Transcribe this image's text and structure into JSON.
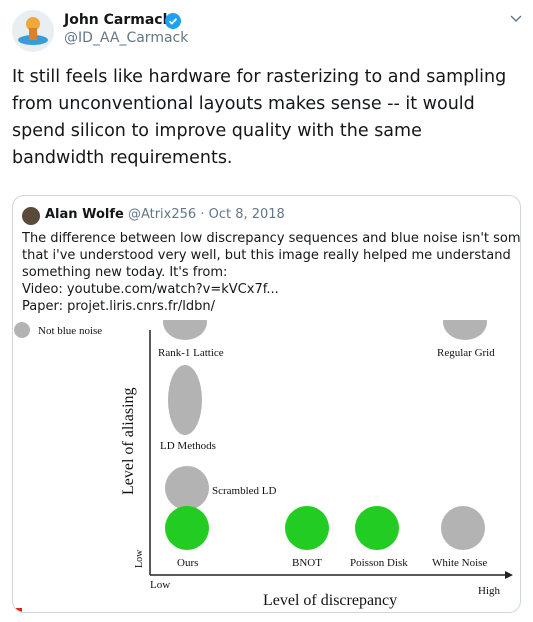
{
  "tweet": {
    "author": {
      "name": "John Carmack",
      "handle": "@ID_AA_Carmack"
    },
    "text_lines": [
      "It still feels like hardware for rasterizing to and sampling",
      "from unconventional layouts makes sense -- it would",
      "spend silicon to improve quality with the same",
      "bandwidth requirements."
    ],
    "quote": {
      "author": {
        "name": "Alan Wolfe",
        "handle": "@Atrix256",
        "date": "· Oct 8, 2018"
      },
      "text_lines": [
        "The difference between low discrepancy sequences and blue noise isn't something",
        "that i've understood very well, but this image really helped me understand",
        "something new today.  It's from:",
        "Video: youtube.com/watch?v=kVCx7f...",
        "Paper: projet.liris.cnrs.fr/ldbn/"
      ],
      "image": {
        "legend": "Not blue noise",
        "y_axis": "Level of aliasing",
        "x_axis": "Level of discrepancy",
        "y_low": "Low",
        "x_low": "Low",
        "x_high": "High",
        "points": [
          "Rank-1 Lattice",
          "Regular Grid",
          "LD Methods",
          "Scrambled LD",
          "Ours",
          "BNOT",
          "Poisson Disk",
          "White Noise"
        ]
      }
    }
  }
}
